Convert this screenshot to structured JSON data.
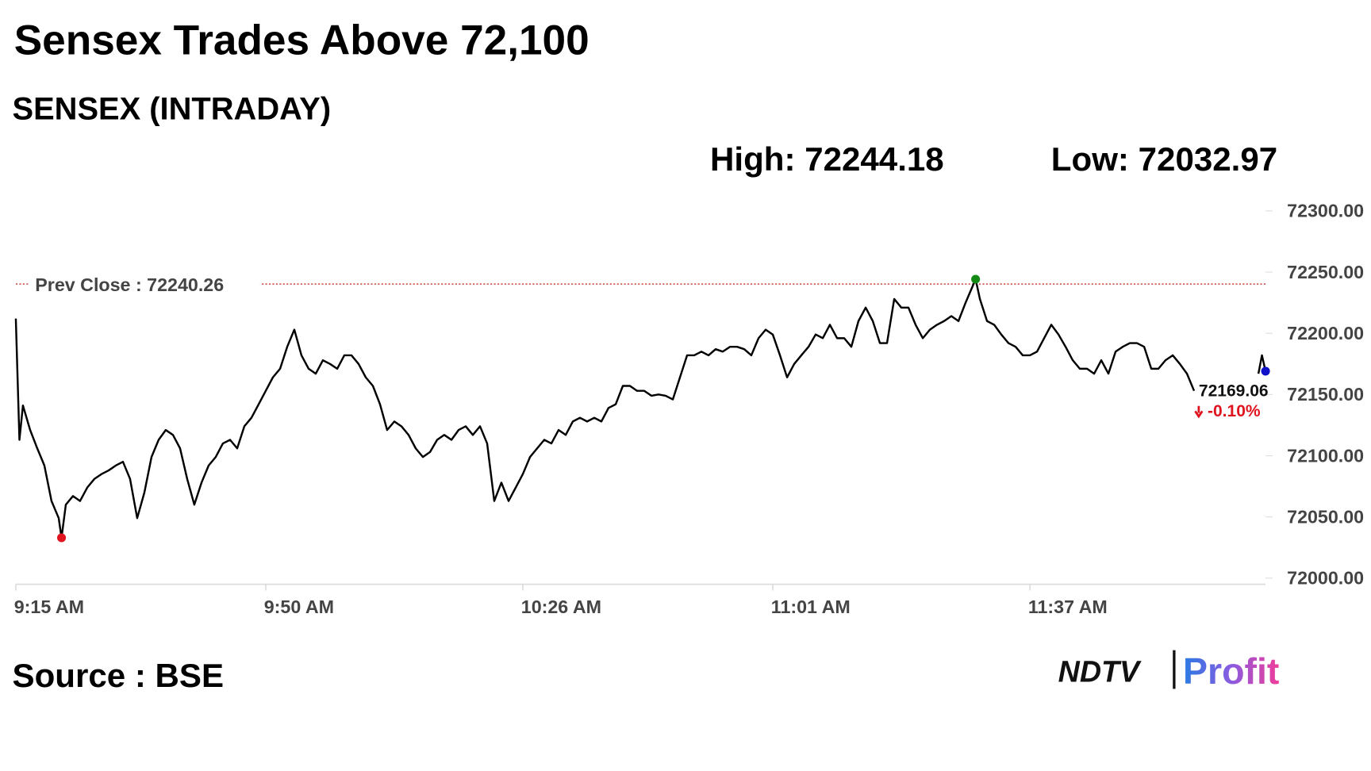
{
  "title": "Sensex Trades Above 72,100",
  "subtitle": "SENSEX (INTRADAY)",
  "high": {
    "label": "High:",
    "value": 72244.18
  },
  "low": {
    "label": "Low:",
    "value": 72032.97
  },
  "source": "Source : BSE",
  "logo": {
    "brand": "NDTV",
    "product": "Profit"
  },
  "chart_data": {
    "type": "line",
    "x": [
      0,
      0.5,
      1,
      2,
      3,
      4,
      5,
      6,
      6.4,
      7,
      8,
      9,
      10,
      11,
      12,
      13,
      14,
      15,
      16,
      17,
      18,
      19,
      20,
      21,
      22,
      23,
      24,
      25,
      26,
      27,
      28,
      29,
      30,
      31,
      32,
      33,
      34,
      35,
      36,
      37,
      38,
      39,
      40,
      41,
      42,
      43,
      44,
      45,
      46,
      47,
      48,
      49,
      50,
      51,
      52,
      53,
      54,
      55,
      56,
      57,
      58,
      59,
      60,
      61,
      62,
      63,
      64,
      65,
      66,
      67,
      68,
      69,
      70,
      71,
      72,
      73,
      74,
      75,
      76,
      77,
      78,
      79,
      80,
      81,
      82,
      83,
      84,
      85,
      86,
      87,
      88,
      89,
      90,
      91,
      92,
      93,
      94,
      95,
      96,
      97,
      98,
      99,
      100,
      101,
      102,
      103,
      104,
      105,
      106,
      107,
      108,
      109,
      110,
      111,
      112,
      113,
      114,
      115,
      116,
      117,
      118,
      119,
      120,
      121,
      122,
      123,
      124,
      125,
      126,
      127,
      128,
      129,
      130,
      131,
      132,
      133,
      134.4,
      135,
      136,
      137,
      138,
      139,
      140,
      141,
      142,
      143,
      144,
      145,
      146,
      147,
      148,
      149,
      150,
      151,
      152,
      153,
      154,
      155,
      156,
      157,
      158,
      159,
      160,
      161,
      162,
      163,
      164,
      165,
      170,
      174,
      174.5,
      175
    ],
    "series": [
      {
        "color": "#000000",
        "values": [
          72212,
          72113,
          72141,
          72121,
          72106,
          72092,
          72063,
          72049,
          72032.97,
          72060,
          72067,
          72063,
          72074,
          72081,
          72085,
          72088,
          72092,
          72095,
          72081,
          72049,
          72070,
          72099,
          72113,
          72121,
          72117,
          72106,
          72081,
          72060,
          72078,
          72092,
          72099,
          72110,
          72113,
          72106,
          72124,
          72131,
          72142,
          72153,
          72164,
          72171,
          72189,
          72203,
          72182,
          72171,
          72167,
          72178,
          72175,
          72171,
          72182,
          72182,
          72175,
          72164,
          72157,
          72142,
          72121,
          72128,
          72124,
          72117,
          72106,
          72099,
          72103,
          72113,
          72117,
          72113,
          72121,
          72124,
          72117,
          72124,
          72110,
          72063,
          72078,
          72063,
          72074,
          72085,
          72099,
          72106,
          72113,
          72110,
          72121,
          72117,
          72128,
          72131,
          72128,
          72131,
          72128,
          72139,
          72142,
          72157,
          72157,
          72153,
          72153,
          72149,
          72150,
          72149,
          72146,
          72164,
          72182,
          72182,
          72185,
          72182,
          72187,
          72185,
          72189,
          72189,
          72187,
          72182,
          72196,
          72203,
          72199,
          72182,
          72164,
          72175,
          72182,
          72189,
          72199,
          72196,
          72207,
          72196,
          72196,
          72189,
          72210,
          72221,
          72210,
          72192,
          72192,
          72228,
          72221,
          72221,
          72207,
          72196,
          72203,
          72207,
          72210,
          72214,
          72210,
          72225,
          72244.18,
          72228,
          72210,
          72207,
          72199,
          72192,
          72189,
          72182,
          72182,
          72185,
          72196,
          72207,
          72199,
          72189,
          72178,
          72171,
          72171,
          72167,
          72178,
          72167,
          72185,
          72189,
          72192,
          72192,
          72189,
          72171,
          72171,
          72178,
          72182,
          72175,
          72167,
          72153,
          null,
          72167,
          72182,
          72169.06
        ]
      }
    ],
    "xlim": [
      0,
      175
    ],
    "xticks": [
      {
        "value": 0,
        "label": "9:15 AM"
      },
      {
        "value": 35,
        "label": "9:50 AM"
      },
      {
        "value": 71,
        "label": "10:26 AM"
      },
      {
        "value": 106,
        "label": "11:01 AM"
      },
      {
        "value": 142,
        "label": "11:37 AM"
      }
    ],
    "ylim": [
      72000,
      72300
    ],
    "yticks": [
      {
        "value": 72000,
        "label": "72000.00"
      },
      {
        "value": 72050,
        "label": "72050.00"
      },
      {
        "value": 72100,
        "label": "72100.00"
      },
      {
        "value": 72150,
        "label": "72150.00"
      },
      {
        "value": 72200,
        "label": "72200.00"
      },
      {
        "value": 72250,
        "label": "72250.00"
      },
      {
        "value": 72300,
        "label": "72300.00"
      }
    ],
    "grid": false,
    "prev_close": {
      "label": "Prev Close :",
      "value": 72240.26,
      "color": "#c0392b"
    },
    "markers": {
      "low": {
        "index": 8,
        "color": "#e0141e"
      },
      "high": {
        "index": 136,
        "color": "#138a13"
      },
      "last": {
        "index": 171,
        "color": "#1010c8"
      }
    },
    "change": {
      "value": -0.1,
      "label": "-0.10%"
    }
  }
}
